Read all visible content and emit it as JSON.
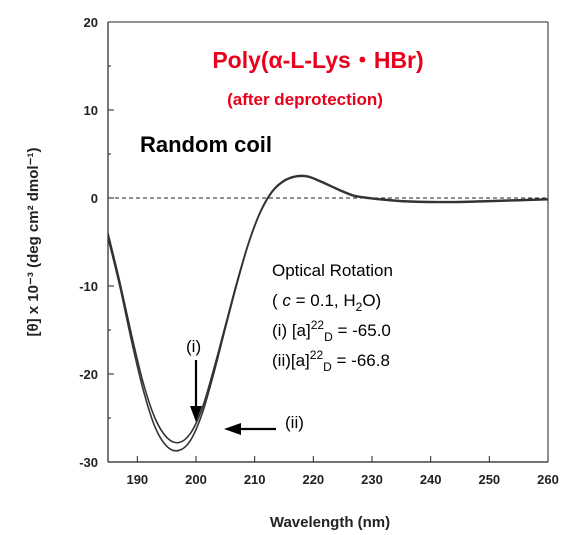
{
  "chart_data": {
    "type": "line",
    "title": "Poly(α-L-Lys・HBr)",
    "subtitle": "(after deprotection)",
    "xlabel": "Wavelength (nm)",
    "ylabel": "[θ] x 10⁻³ (deg cm² dmol⁻¹)",
    "xlim": [
      185,
      260
    ],
    "ylim": [
      -30,
      20
    ],
    "xticks": [
      "190",
      "200",
      "210",
      "220",
      "230",
      "240",
      "250",
      "260"
    ],
    "yticks": [
      "20",
      "10",
      "0",
      "-10",
      "-20",
      "-30"
    ],
    "zero_line": "dashed",
    "grid": false,
    "legend": "none",
    "series": [
      {
        "name": "(i)",
        "x": [
          185,
          187,
          189,
          191,
          193,
          195,
          197,
          199,
          201,
          203,
          205,
          207,
          209,
          211,
          213,
          215,
          217,
          219,
          221,
          223,
          225,
          227,
          230,
          235,
          240,
          245,
          250,
          255,
          260
        ],
        "y": [
          -4.0,
          -9.5,
          -15.5,
          -21.0,
          -25.0,
          -27.2,
          -27.8,
          -26.8,
          -24.0,
          -19.5,
          -14.5,
          -9.5,
          -5.0,
          -1.5,
          0.8,
          2.0,
          2.5,
          2.5,
          2.0,
          1.4,
          0.8,
          0.3,
          0.0,
          -0.3,
          -0.4,
          -0.4,
          -0.3,
          -0.2,
          -0.1
        ]
      },
      {
        "name": "(ii)",
        "x": [
          185,
          187,
          189,
          191,
          193,
          195,
          197,
          199,
          201,
          203,
          205,
          207,
          209,
          211,
          213,
          215,
          217,
          219,
          221,
          223,
          225,
          227,
          230,
          235,
          240,
          245,
          250,
          255,
          260
        ],
        "y": [
          -4.5,
          -10.0,
          -16.2,
          -21.8,
          -26.0,
          -28.2,
          -28.7,
          -27.6,
          -24.6,
          -20.0,
          -14.8,
          -9.7,
          -5.1,
          -1.6,
          0.7,
          1.9,
          2.4,
          2.4,
          1.9,
          1.3,
          0.7,
          0.2,
          -0.1,
          -0.4,
          -0.5,
          -0.5,
          -0.4,
          -0.3,
          -0.2
        ]
      }
    ],
    "annotations": {
      "label": "Random coil",
      "note_title": "Optical Rotation",
      "note_line2_open": "( ",
      "note_line2_c": "c",
      "note_line2_rest": " = 0.1, H",
      "note_line2_sub": "2",
      "note_line2_close": "O)",
      "note_line3_prefix": "(i) [a]",
      "note_line3_sup": "22",
      "note_line3_sub": "D",
      "note_line3_value": " = -65.0",
      "note_line4_prefix": "(ii)[a]",
      "note_line4_sup": "22",
      "note_line4_sub": "D",
      "note_line4_value": " = -66.8",
      "arrow_i_label": "(i)",
      "arrow_ii_label": "(ii)"
    }
  }
}
